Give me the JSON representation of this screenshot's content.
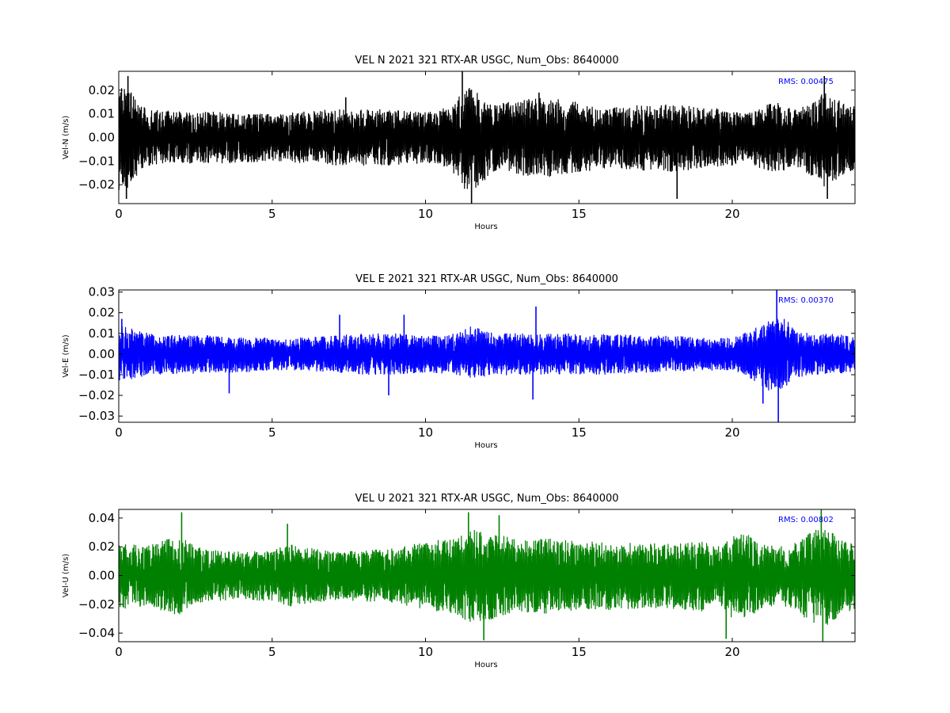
{
  "chart_data": [
    {
      "type": "line",
      "title": "VEL N 2021 321 RTX-AR  USGC, Num_Obs: 8640000",
      "xlabel": "Hours",
      "ylabel": "Vel-N (m/s)",
      "xlim": [
        0,
        24
      ],
      "ylim": [
        -0.028,
        0.028
      ],
      "xticks": [
        "0",
        "5",
        "10",
        "15",
        "20"
      ],
      "xtick_values": [
        0,
        5,
        10,
        15,
        20
      ],
      "yticks": [
        "−0.02",
        "−0.01",
        "0.00",
        "0.01",
        "0.02"
      ],
      "ytick_values": [
        -0.02,
        -0.01,
        0.0,
        0.01,
        0.02
      ],
      "grid": false,
      "rms_label": "RMS:  0.00475",
      "series": [
        {
          "color": "#000000",
          "envelope": {
            "hours": [
              0,
              0.3,
              0.6,
              1,
              2,
              3,
              4,
              5,
              6,
              7,
              8,
              9,
              10,
              10.8,
              11.3,
              11.7,
              12.3,
              13,
              14,
              15,
              16,
              17,
              18,
              19,
              20,
              20.5,
              21,
              21.5,
              22,
              22.5,
              23,
              23.5,
              24
            ],
            "upper": [
              0.022,
              0.021,
              0.016,
              0.012,
              0.011,
              0.011,
              0.01,
              0.01,
              0.011,
              0.012,
              0.012,
              0.012,
              0.011,
              0.013,
              0.022,
              0.02,
              0.014,
              0.016,
              0.017,
              0.015,
              0.013,
              0.014,
              0.014,
              0.013,
              0.012,
              0.01,
              0.014,
              0.015,
              0.012,
              0.015,
              0.019,
              0.016,
              0.013
            ],
            "lower": [
              -0.024,
              -0.022,
              -0.016,
              -0.012,
              -0.011,
              -0.011,
              -0.011,
              -0.01,
              -0.011,
              -0.012,
              -0.012,
              -0.012,
              -0.011,
              -0.013,
              -0.023,
              -0.021,
              -0.014,
              -0.016,
              -0.017,
              -0.015,
              -0.013,
              -0.014,
              -0.015,
              -0.013,
              -0.012,
              -0.01,
              -0.014,
              -0.016,
              -0.012,
              -0.016,
              -0.021,
              -0.017,
              -0.014
            ]
          },
          "spikes": [
            [
              0.3,
              0.026
            ],
            [
              0.25,
              -0.026
            ],
            [
              7.4,
              0.017
            ],
            [
              11.2,
              0.028
            ],
            [
              11.5,
              -0.028
            ],
            [
              13.7,
              0.019
            ],
            [
              18.2,
              -0.026
            ],
            [
              23.0,
              0.026
            ],
            [
              23.1,
              -0.026
            ]
          ]
        }
      ]
    },
    {
      "type": "line",
      "title": "VEL E 2021 321 RTX-AR  USGC, Num_Obs: 8640000",
      "xlabel": "Hours",
      "ylabel": "Vel-E (m/s)",
      "xlim": [
        0,
        24
      ],
      "ylim": [
        -0.033,
        0.031
      ],
      "xticks": [
        "0",
        "5",
        "10",
        "15",
        "20"
      ],
      "xtick_values": [
        0,
        5,
        10,
        15,
        20
      ],
      "yticks": [
        "−0.03",
        "−0.02",
        "−0.01",
        "0.00",
        "0.01",
        "0.02",
        "0.03"
      ],
      "ytick_values": [
        -0.03,
        -0.02,
        -0.01,
        0.0,
        0.01,
        0.02,
        0.03
      ],
      "grid": false,
      "rms_label": "RMS:  0.00370",
      "series": [
        {
          "color": "#0000ff",
          "envelope": {
            "hours": [
              0,
              0.5,
              1,
              2,
              3,
              4,
              5,
              6,
              7,
              8,
              9,
              10,
              11,
              11.5,
              12,
              13,
              14,
              15,
              16,
              17,
              18,
              19,
              20,
              20.7,
              21.2,
              21.7,
              22,
              22.5,
              23,
              24
            ],
            "upper": [
              0.014,
              0.012,
              0.01,
              0.01,
              0.009,
              0.008,
              0.008,
              0.008,
              0.009,
              0.01,
              0.01,
              0.009,
              0.01,
              0.014,
              0.011,
              0.01,
              0.01,
              0.01,
              0.01,
              0.009,
              0.009,
              0.008,
              0.008,
              0.012,
              0.018,
              0.018,
              0.012,
              0.01,
              0.01,
              0.009
            ],
            "lower": [
              -0.013,
              -0.012,
              -0.01,
              -0.01,
              -0.009,
              -0.009,
              -0.008,
              -0.008,
              -0.009,
              -0.01,
              -0.01,
              -0.009,
              -0.01,
              -0.012,
              -0.011,
              -0.01,
              -0.01,
              -0.01,
              -0.01,
              -0.009,
              -0.009,
              -0.008,
              -0.008,
              -0.013,
              -0.018,
              -0.017,
              -0.012,
              -0.01,
              -0.01,
              -0.009
            ]
          },
          "spikes": [
            [
              0.1,
              0.017
            ],
            [
              3.6,
              -0.019
            ],
            [
              7.2,
              0.019
            ],
            [
              9.3,
              0.019
            ],
            [
              8.8,
              -0.02
            ],
            [
              13.6,
              0.023
            ],
            [
              13.5,
              -0.022
            ],
            [
              21.45,
              0.031
            ],
            [
              21.5,
              -0.033
            ],
            [
              21.0,
              -0.024
            ]
          ]
        }
      ]
    },
    {
      "type": "line",
      "title": "VEL U 2021 321 RTX-AR  USGC, Num_Obs: 8640000",
      "xlabel": "Hours",
      "ylabel": "Vel-U (m/s)",
      "xlim": [
        0,
        24
      ],
      "ylim": [
        -0.046,
        0.046
      ],
      "xticks": [
        "0",
        "5",
        "10",
        "15",
        "20"
      ],
      "xtick_values": [
        0,
        5,
        10,
        15,
        20
      ],
      "yticks": [
        "−0.04",
        "−0.02",
        "0.00",
        "0.02",
        "0.04"
      ],
      "ytick_values": [
        -0.04,
        -0.02,
        0.0,
        0.02,
        0.04
      ],
      "grid": false,
      "rms_label": "RMS:  0.00802",
      "series": [
        {
          "color": "#008000",
          "envelope": {
            "hours": [
              0,
              1,
              2,
              2.5,
              3,
              4,
              5,
              5.5,
              6,
              7,
              8,
              9,
              10,
              11,
              11.5,
              12,
              12.5,
              13,
              14,
              15,
              16,
              17,
              18,
              19,
              19.5,
              20,
              20.5,
              21,
              21.5,
              22,
              22.5,
              23,
              23.5,
              24
            ],
            "upper": [
              0.022,
              0.022,
              0.028,
              0.02,
              0.018,
              0.017,
              0.017,
              0.022,
              0.02,
              0.017,
              0.018,
              0.019,
              0.024,
              0.026,
              0.032,
              0.03,
              0.028,
              0.025,
              0.026,
              0.024,
              0.024,
              0.023,
              0.022,
              0.024,
              0.02,
              0.028,
              0.03,
              0.022,
              0.02,
              0.022,
              0.03,
              0.034,
              0.026,
              0.022
            ],
            "lower": [
              -0.024,
              -0.022,
              -0.028,
              -0.02,
              -0.018,
              -0.017,
              -0.018,
              -0.022,
              -0.02,
              -0.017,
              -0.018,
              -0.019,
              -0.024,
              -0.027,
              -0.034,
              -0.032,
              -0.028,
              -0.025,
              -0.027,
              -0.024,
              -0.024,
              -0.023,
              -0.023,
              -0.025,
              -0.02,
              -0.03,
              -0.03,
              -0.022,
              -0.021,
              -0.023,
              -0.032,
              -0.036,
              -0.028,
              -0.023
            ]
          },
          "spikes": [
            [
              2.05,
              0.044
            ],
            [
              5.5,
              0.036
            ],
            [
              11.4,
              0.044
            ],
            [
              11.9,
              -0.045
            ],
            [
              12.4,
              0.042
            ],
            [
              19.8,
              -0.044
            ],
            [
              22.9,
              0.046
            ],
            [
              22.95,
              -0.046
            ]
          ]
        }
      ]
    }
  ]
}
